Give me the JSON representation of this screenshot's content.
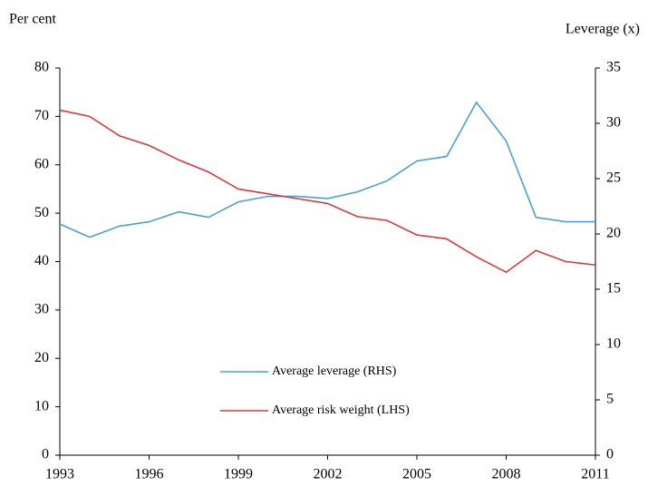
{
  "chart_data": {
    "type": "line",
    "y_label": "Per cent",
    "y2_label": "Leverage  (x)",
    "x": [
      1993,
      1994,
      1995,
      1996,
      1997,
      1998,
      1999,
      2000,
      2001,
      2002,
      2003,
      2004,
      2005,
      2006,
      2007,
      2008,
      2009,
      2010,
      2011
    ],
    "series": [
      {
        "name": "Average leverage (RHS)",
        "color": "#4a9fd8",
        "axis": "y2",
        "values": [
          20.9,
          19.7,
          20.7,
          21.1,
          22.0,
          21.5,
          22.9,
          23.4,
          23.4,
          23.2,
          23.8,
          24.8,
          26.6,
          27.0,
          31.9,
          28.4,
          21.5,
          21.1,
          21.1
        ]
      },
      {
        "name": "Average risk weight (LHS)",
        "color": "#d9393b",
        "axis": "y",
        "values": [
          71.3,
          70.0,
          66.0,
          64.0,
          61.0,
          58.5,
          55.0,
          54.0,
          53.0,
          52.0,
          49.3,
          48.5,
          45.5,
          44.7,
          41.0,
          37.8,
          42.3,
          40.0,
          39.3
        ]
      }
    ],
    "xlim": [
      1993,
      2011
    ],
    "xticks": [
      1993,
      1996,
      1999,
      2002,
      2005,
      2008,
      2011
    ],
    "ylim": [
      0,
      80
    ],
    "yticks": [
      0,
      10,
      20,
      30,
      40,
      50,
      60,
      70,
      80
    ],
    "y2lim": [
      0,
      35
    ],
    "y2ticks": [
      0,
      5,
      10,
      15,
      20,
      25,
      30,
      35
    ],
    "grid": false
  }
}
